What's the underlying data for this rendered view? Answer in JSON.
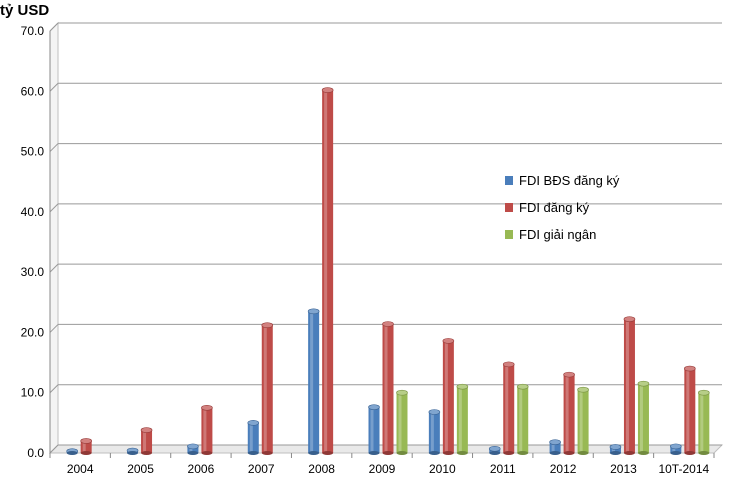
{
  "chart_data": {
    "type": "bar",
    "unit_label": "tỷ USD",
    "categories": [
      "2004",
      "2005",
      "2006",
      "2007",
      "2008",
      "2009",
      "2010",
      "2011",
      "2012",
      "2013",
      "10T-2014"
    ],
    "series": [
      {
        "name": "FDI BĐS đăng ký",
        "color": "#4a7ebb",
        "values": [
          0.3,
          0.4,
          1.1,
          5.0,
          23.5,
          7.6,
          6.8,
          0.7,
          1.8,
          1.0,
          1.1
        ]
      },
      {
        "name": "FDI đăng ký",
        "color": "#be4b48",
        "values": [
          2.0,
          3.8,
          7.5,
          21.2,
          60.2,
          21.4,
          18.6,
          14.7,
          13.0,
          22.2,
          14.0
        ]
      },
      {
        "name": "FDI giải ngân",
        "color": "#98b954",
        "values": [
          null,
          null,
          null,
          null,
          null,
          10.0,
          11.0,
          11.0,
          10.5,
          11.5,
          10.0
        ]
      }
    ],
    "ylim": [
      0,
      70
    ],
    "yticks": [
      "0.0",
      "10.0",
      "20.0",
      "30.0",
      "40.0",
      "50.0",
      "60.0",
      "70.0"
    ],
    "grid": true,
    "legend_position": "right"
  }
}
